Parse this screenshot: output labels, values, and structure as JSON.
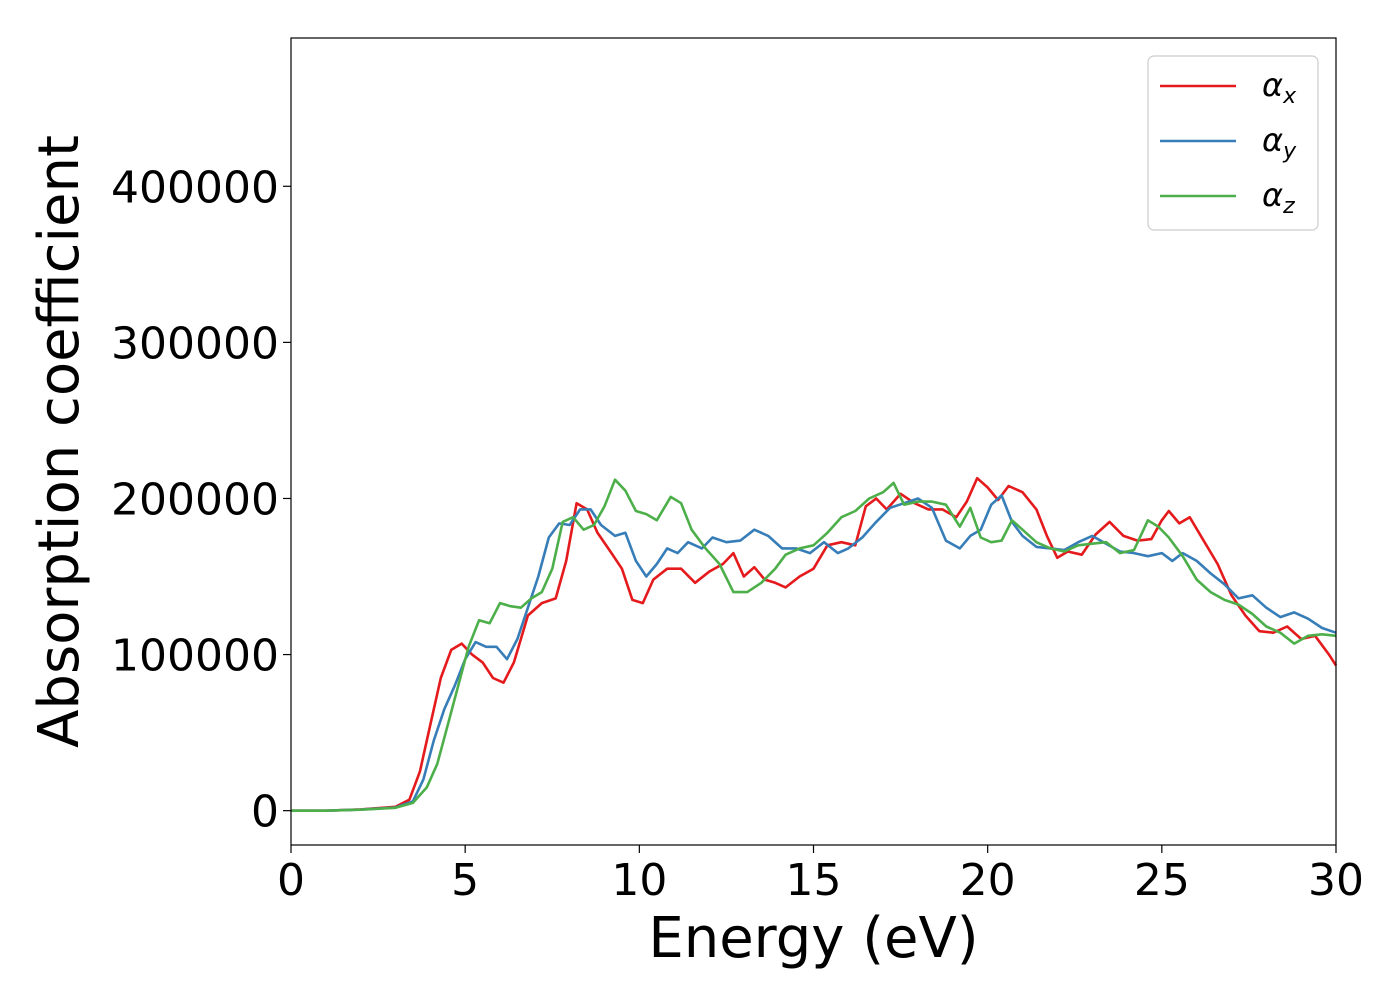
{
  "chart_data": {
    "type": "line",
    "title": "",
    "xlabel": "Energy (eV)",
    "ylabel": "Absorption coefficient",
    "xlim": [
      0,
      30
    ],
    "ylim": [
      -22000,
      495000
    ],
    "xticks": [
      0,
      5,
      10,
      15,
      20,
      25,
      30
    ],
    "yticks": [
      0,
      100000,
      200000,
      300000,
      400000
    ],
    "grid": false,
    "legend_position": "top-right",
    "series": [
      {
        "name": "α",
        "subscript": "x",
        "color": "#e41a1c",
        "points": [
          [
            0,
            0
          ],
          [
            1,
            0
          ],
          [
            2,
            800
          ],
          [
            3,
            2500
          ],
          [
            3.4,
            7000
          ],
          [
            3.7,
            25000
          ],
          [
            4.0,
            55000
          ],
          [
            4.3,
            85000
          ],
          [
            4.6,
            103000
          ],
          [
            4.9,
            107000
          ],
          [
            5.2,
            100000
          ],
          [
            5.5,
            95000
          ],
          [
            5.8,
            85000
          ],
          [
            6.1,
            82000
          ],
          [
            6.4,
            95000
          ],
          [
            6.8,
            125000
          ],
          [
            7.2,
            133000
          ],
          [
            7.6,
            136000
          ],
          [
            7.9,
            160000
          ],
          [
            8.2,
            197000
          ],
          [
            8.5,
            193000
          ],
          [
            8.8,
            178000
          ],
          [
            9.2,
            165000
          ],
          [
            9.5,
            155000
          ],
          [
            9.8,
            135000
          ],
          [
            10.1,
            133000
          ],
          [
            10.4,
            148000
          ],
          [
            10.8,
            155000
          ],
          [
            11.2,
            155000
          ],
          [
            11.6,
            146000
          ],
          [
            12.0,
            153000
          ],
          [
            12.4,
            158000
          ],
          [
            12.7,
            165000
          ],
          [
            13.0,
            150000
          ],
          [
            13.3,
            156000
          ],
          [
            13.6,
            148000
          ],
          [
            13.9,
            146000
          ],
          [
            14.2,
            143000
          ],
          [
            14.6,
            150000
          ],
          [
            15.0,
            155000
          ],
          [
            15.4,
            170000
          ],
          [
            15.8,
            172000
          ],
          [
            16.2,
            170000
          ],
          [
            16.5,
            195000
          ],
          [
            16.8,
            200000
          ],
          [
            17.1,
            193000
          ],
          [
            17.5,
            203000
          ],
          [
            17.9,
            197000
          ],
          [
            18.3,
            193000
          ],
          [
            18.7,
            193000
          ],
          [
            19.1,
            188000
          ],
          [
            19.4,
            198000
          ],
          [
            19.7,
            213000
          ],
          [
            20.0,
            207000
          ],
          [
            20.3,
            199000
          ],
          [
            20.6,
            208000
          ],
          [
            21.0,
            204000
          ],
          [
            21.4,
            193000
          ],
          [
            21.7,
            176000
          ],
          [
            22.0,
            162000
          ],
          [
            22.3,
            166000
          ],
          [
            22.7,
            164000
          ],
          [
            23.1,
            177000
          ],
          [
            23.5,
            185000
          ],
          [
            23.9,
            176000
          ],
          [
            24.3,
            173000
          ],
          [
            24.7,
            174000
          ],
          [
            25.0,
            186000
          ],
          [
            25.2,
            192000
          ],
          [
            25.5,
            184000
          ],
          [
            25.8,
            188000
          ],
          [
            26.2,
            173000
          ],
          [
            26.6,
            158000
          ],
          [
            27.0,
            138000
          ],
          [
            27.4,
            125000
          ],
          [
            27.8,
            115000
          ],
          [
            28.2,
            114000
          ],
          [
            28.6,
            118000
          ],
          [
            29.0,
            110000
          ],
          [
            29.4,
            112000
          ],
          [
            29.8,
            100000
          ],
          [
            30,
            93000
          ]
        ]
      },
      {
        "name": "α",
        "subscript": "y",
        "color": "#377eb8",
        "points": [
          [
            0,
            0
          ],
          [
            1,
            0
          ],
          [
            2,
            700
          ],
          [
            3,
            2000
          ],
          [
            3.5,
            6000
          ],
          [
            3.8,
            20000
          ],
          [
            4.1,
            45000
          ],
          [
            4.4,
            65000
          ],
          [
            4.7,
            80000
          ],
          [
            5.0,
            97000
          ],
          [
            5.3,
            108000
          ],
          [
            5.6,
            105000
          ],
          [
            5.9,
            105000
          ],
          [
            6.2,
            97000
          ],
          [
            6.5,
            110000
          ],
          [
            6.8,
            130000
          ],
          [
            7.1,
            150000
          ],
          [
            7.4,
            175000
          ],
          [
            7.7,
            184000
          ],
          [
            8.0,
            183000
          ],
          [
            8.3,
            193000
          ],
          [
            8.6,
            193000
          ],
          [
            8.9,
            183000
          ],
          [
            9.3,
            176000
          ],
          [
            9.6,
            178000
          ],
          [
            9.9,
            160000
          ],
          [
            10.2,
            150000
          ],
          [
            10.5,
            158000
          ],
          [
            10.8,
            168000
          ],
          [
            11.1,
            165000
          ],
          [
            11.4,
            172000
          ],
          [
            11.8,
            168000
          ],
          [
            12.1,
            175000
          ],
          [
            12.5,
            172000
          ],
          [
            12.9,
            173000
          ],
          [
            13.3,
            180000
          ],
          [
            13.7,
            176000
          ],
          [
            14.1,
            168000
          ],
          [
            14.5,
            168000
          ],
          [
            14.9,
            165000
          ],
          [
            15.3,
            172000
          ],
          [
            15.7,
            165000
          ],
          [
            16.0,
            168000
          ],
          [
            16.4,
            175000
          ],
          [
            16.8,
            185000
          ],
          [
            17.2,
            194000
          ],
          [
            17.6,
            197000
          ],
          [
            18.0,
            200000
          ],
          [
            18.4,
            194000
          ],
          [
            18.8,
            173000
          ],
          [
            19.2,
            168000
          ],
          [
            19.5,
            176000
          ],
          [
            19.8,
            180000
          ],
          [
            20.1,
            196000
          ],
          [
            20.4,
            202000
          ],
          [
            20.7,
            185000
          ],
          [
            21.0,
            176000
          ],
          [
            21.4,
            169000
          ],
          [
            21.8,
            168000
          ],
          [
            22.2,
            167000
          ],
          [
            22.6,
            172000
          ],
          [
            23.0,
            176000
          ],
          [
            23.4,
            171000
          ],
          [
            23.8,
            166000
          ],
          [
            24.2,
            165000
          ],
          [
            24.6,
            163000
          ],
          [
            25.0,
            165000
          ],
          [
            25.3,
            160000
          ],
          [
            25.6,
            165000
          ],
          [
            26.0,
            160000
          ],
          [
            26.4,
            152000
          ],
          [
            26.8,
            145000
          ],
          [
            27.2,
            136000
          ],
          [
            27.6,
            138000
          ],
          [
            28.0,
            130000
          ],
          [
            28.4,
            124000
          ],
          [
            28.8,
            127000
          ],
          [
            29.2,
            123000
          ],
          [
            29.6,
            117000
          ],
          [
            30,
            114000
          ]
        ]
      },
      {
        "name": "α",
        "subscript": "z",
        "color": "#4daf4a",
        "points": [
          [
            0,
            0
          ],
          [
            1,
            0
          ],
          [
            2,
            600
          ],
          [
            3,
            1800
          ],
          [
            3.5,
            5000
          ],
          [
            3.9,
            15000
          ],
          [
            4.2,
            30000
          ],
          [
            4.5,
            55000
          ],
          [
            4.8,
            80000
          ],
          [
            5.1,
            105000
          ],
          [
            5.4,
            122000
          ],
          [
            5.7,
            120000
          ],
          [
            6.0,
            133000
          ],
          [
            6.3,
            131000
          ],
          [
            6.6,
            130000
          ],
          [
            6.9,
            136000
          ],
          [
            7.2,
            140000
          ],
          [
            7.5,
            155000
          ],
          [
            7.8,
            185000
          ],
          [
            8.1,
            188000
          ],
          [
            8.4,
            180000
          ],
          [
            8.7,
            183000
          ],
          [
            9.0,
            195000
          ],
          [
            9.3,
            212000
          ],
          [
            9.6,
            205000
          ],
          [
            9.9,
            192000
          ],
          [
            10.2,
            190000
          ],
          [
            10.5,
            186000
          ],
          [
            10.9,
            201000
          ],
          [
            11.2,
            197000
          ],
          [
            11.5,
            180000
          ],
          [
            11.9,
            168000
          ],
          [
            12.3,
            158000
          ],
          [
            12.7,
            140000
          ],
          [
            13.1,
            140000
          ],
          [
            13.5,
            146000
          ],
          [
            13.9,
            155000
          ],
          [
            14.2,
            164000
          ],
          [
            14.6,
            168000
          ],
          [
            15.0,
            170000
          ],
          [
            15.4,
            178000
          ],
          [
            15.8,
            188000
          ],
          [
            16.2,
            192000
          ],
          [
            16.6,
            200000
          ],
          [
            17.0,
            204000
          ],
          [
            17.3,
            210000
          ],
          [
            17.6,
            196000
          ],
          [
            18.0,
            198000
          ],
          [
            18.4,
            198000
          ],
          [
            18.8,
            196000
          ],
          [
            19.2,
            182000
          ],
          [
            19.5,
            194000
          ],
          [
            19.8,
            175000
          ],
          [
            20.1,
            172000
          ],
          [
            20.4,
            173000
          ],
          [
            20.7,
            186000
          ],
          [
            21.0,
            180000
          ],
          [
            21.4,
            172000
          ],
          [
            21.8,
            168000
          ],
          [
            22.2,
            166000
          ],
          [
            22.6,
            170000
          ],
          [
            23.0,
            171000
          ],
          [
            23.4,
            172000
          ],
          [
            23.8,
            165000
          ],
          [
            24.2,
            167000
          ],
          [
            24.6,
            186000
          ],
          [
            24.9,
            182000
          ],
          [
            25.2,
            175000
          ],
          [
            25.6,
            163000
          ],
          [
            26.0,
            148000
          ],
          [
            26.4,
            140000
          ],
          [
            26.8,
            135000
          ],
          [
            27.2,
            132000
          ],
          [
            27.6,
            126000
          ],
          [
            28.0,
            118000
          ],
          [
            28.4,
            114000
          ],
          [
            28.8,
            107000
          ],
          [
            29.2,
            112000
          ],
          [
            29.6,
            113000
          ],
          [
            30,
            112000
          ]
        ]
      }
    ]
  }
}
